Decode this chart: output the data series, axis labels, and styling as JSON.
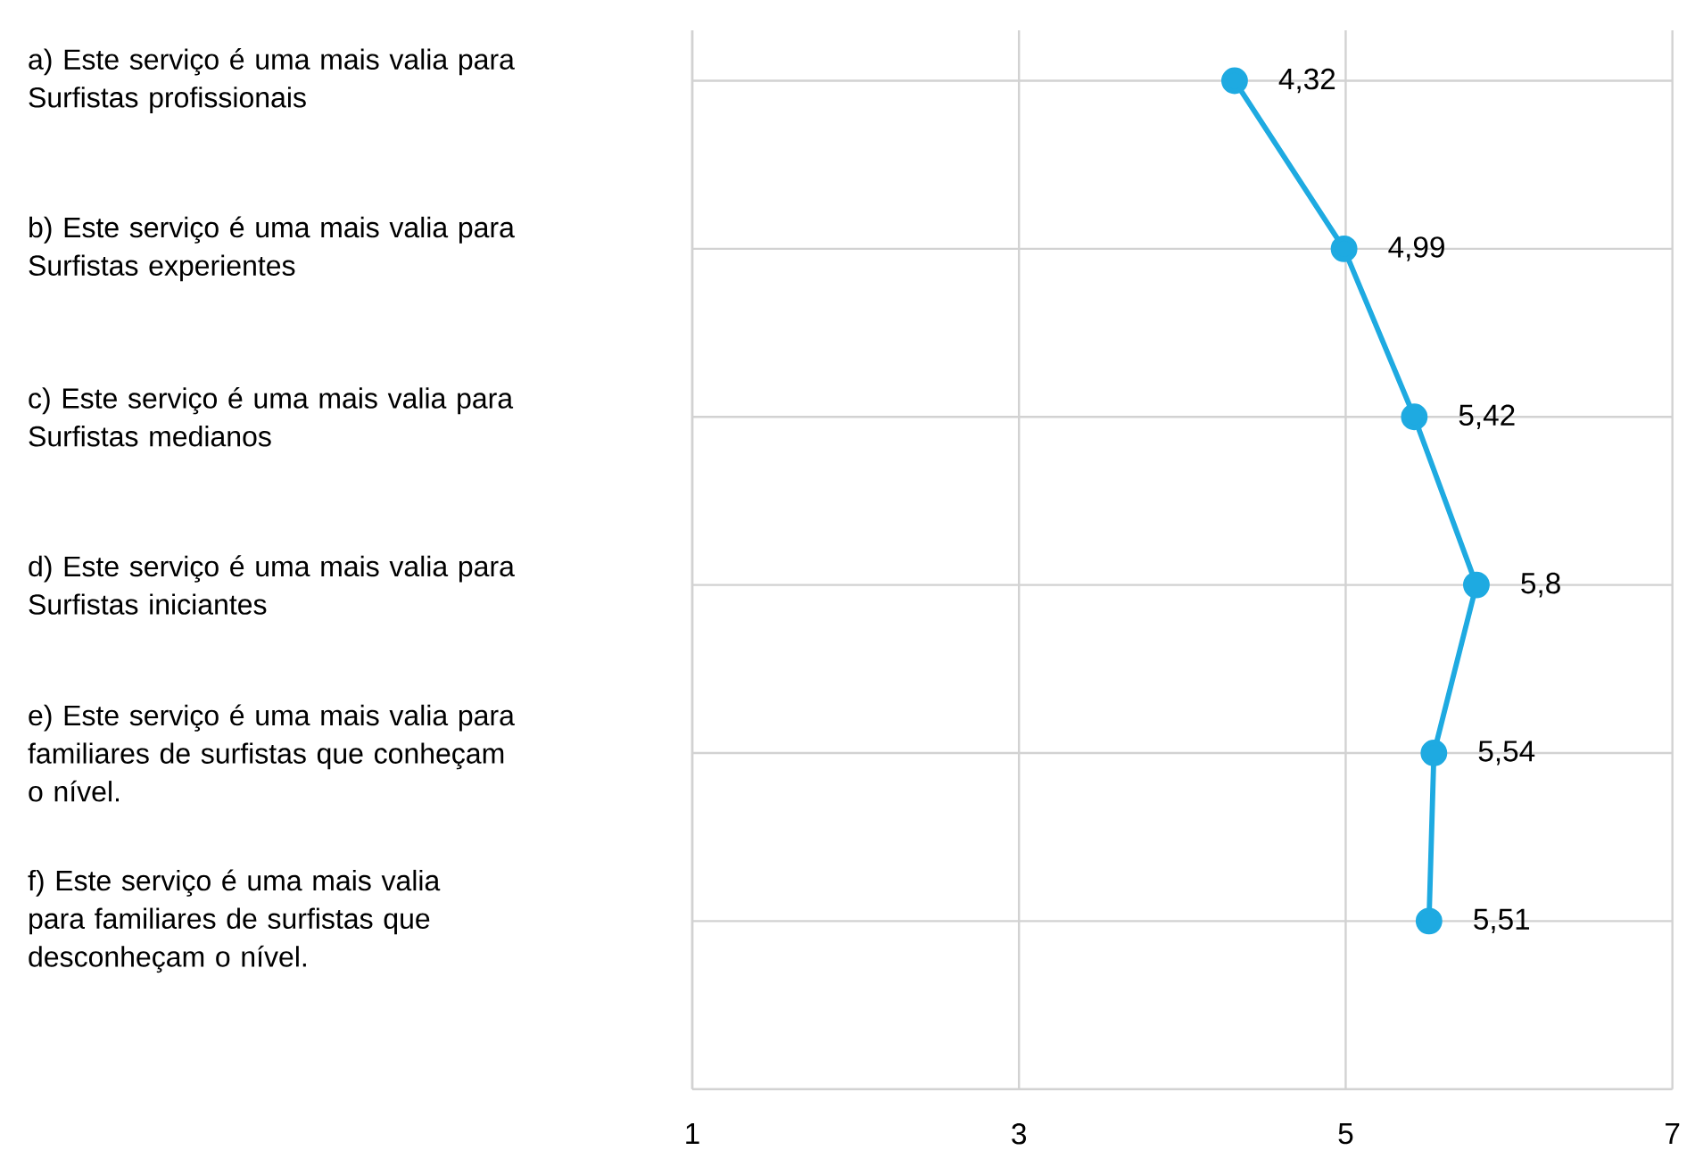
{
  "chart_data": {
    "type": "line",
    "orientation": "horizontal",
    "categories": [
      "a) Este serviço é uma mais valia para Surfistas profissionais",
      "b) Este serviço é uma mais valia para Surfistas experientes",
      "c) Este serviço é uma mais valia para Surfistas medianos",
      "d) Este serviço é uma mais valia para Surfistas iniciantes",
      "e) Este serviço é uma mais valia para familiares de surfistas que conheçam o nível.",
      "f) Este serviço é uma mais valia para familiares de surfistas que desconheçam o nível."
    ],
    "values": [
      4.32,
      4.99,
      5.42,
      5.8,
      5.54,
      5.51
    ],
    "value_labels": [
      "4,32",
      "4,99",
      "5,42",
      "5,8",
      "5,54",
      "5,51"
    ],
    "color": "#1eaae1",
    "xlim": [
      1,
      7
    ],
    "xticks": [
      1,
      3,
      5,
      7
    ],
    "grid": true,
    "marker": "circle",
    "line_style": "solid"
  }
}
